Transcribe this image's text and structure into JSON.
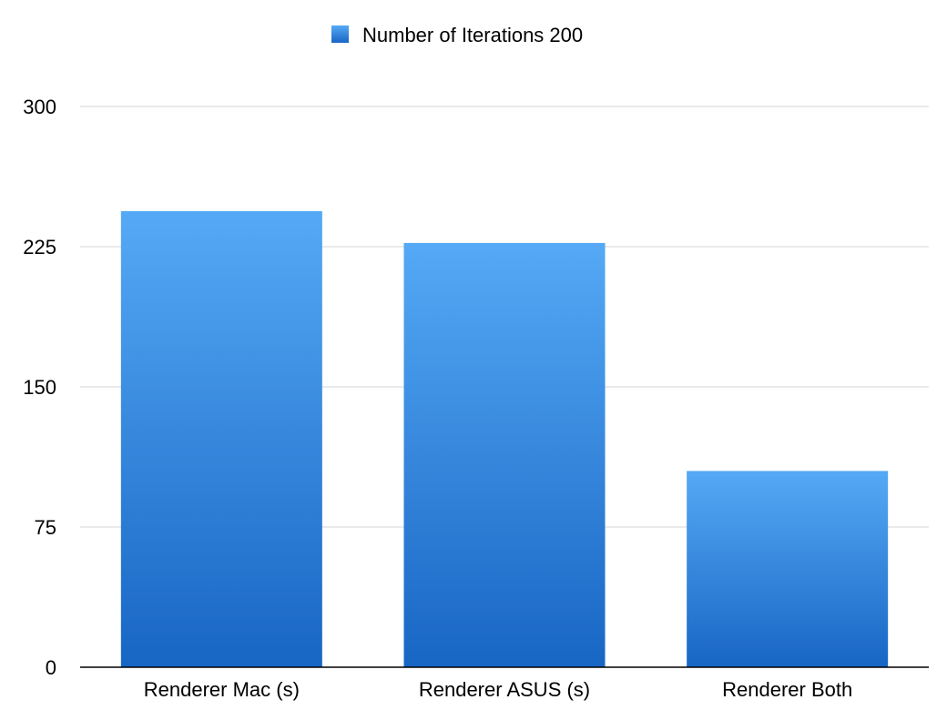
{
  "chart_data": {
    "type": "bar",
    "title": "",
    "xlabel": "",
    "ylabel": "",
    "categories": [
      "Renderer Mac (s)",
      "Renderer ASUS (s)",
      "Renderer Both"
    ],
    "series": [
      {
        "name": "Number of Iterations 200",
        "values": [
          244,
          227,
          105
        ],
        "color_top": "#55a9f5",
        "color_bottom": "#1866c4"
      }
    ],
    "ylim": [
      0,
      300
    ],
    "yticks": [
      "0",
      "75",
      "150",
      "225",
      "300"
    ],
    "grid": true,
    "legend_position": "top-center"
  }
}
